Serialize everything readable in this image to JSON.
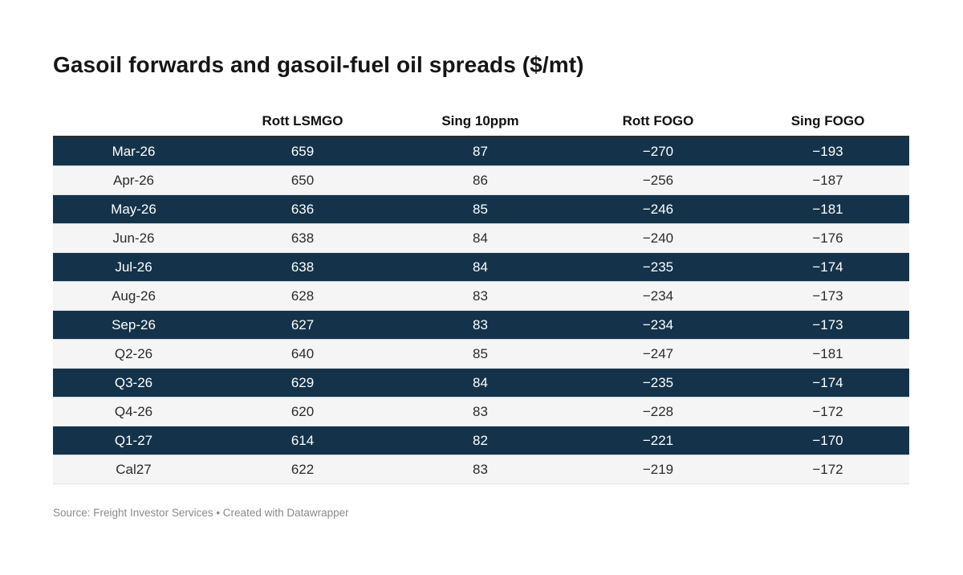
{
  "title": "Gasoil forwards and gasoil-fuel oil spreads ($/mt)",
  "source_note": "Source: Freight Investor Services • Created with Datawrapper",
  "colors": {
    "dark_row_bg": "#14334a",
    "light_row_bg": "#f5f5f5",
    "dark_row_text": "#ffffff",
    "light_row_text": "#2b2b2b",
    "header_rule": "#2e2e2e",
    "source_text": "#8a8a8a",
    "background": "#ffffff"
  },
  "chart_data": {
    "type": "table",
    "title": "Gasoil forwards and gasoil-fuel oil spreads ($/mt)",
    "columns": [
      "",
      "Rott LSMGO",
      "Sing 10ppm",
      "Rott FOGO",
      "Sing FOGO"
    ],
    "rows": [
      {
        "label": "Mar-26",
        "values": [
          "659",
          "87",
          "−270",
          "−193"
        ]
      },
      {
        "label": "Apr-26",
        "values": [
          "650",
          "86",
          "−256",
          "−187"
        ]
      },
      {
        "label": "May-26",
        "values": [
          "636",
          "85",
          "−246",
          "−181"
        ]
      },
      {
        "label": "Jun-26",
        "values": [
          "638",
          "84",
          "−240",
          "−176"
        ]
      },
      {
        "label": "Jul-26",
        "values": [
          "638",
          "84",
          "−235",
          "−174"
        ]
      },
      {
        "label": "Aug-26",
        "values": [
          "628",
          "83",
          "−234",
          "−173"
        ]
      },
      {
        "label": "Sep-26",
        "values": [
          "627",
          "83",
          "−234",
          "−173"
        ]
      },
      {
        "label": "Q2-26",
        "values": [
          "640",
          "85",
          "−247",
          "−181"
        ]
      },
      {
        "label": "Q3-26",
        "values": [
          "629",
          "84",
          "−235",
          "−174"
        ]
      },
      {
        "label": "Q4-26",
        "values": [
          "620",
          "83",
          "−228",
          "−172"
        ]
      },
      {
        "label": "Q1-27",
        "values": [
          "614",
          "82",
          "−221",
          "−170"
        ]
      },
      {
        "label": "Cal27",
        "values": [
          "622",
          "83",
          "−219",
          "−172"
        ]
      }
    ],
    "layout": {
      "row_striping": "alternating dark/light starting dark",
      "alignment": "center",
      "legend": "none",
      "grid": "row dividers only"
    }
  }
}
